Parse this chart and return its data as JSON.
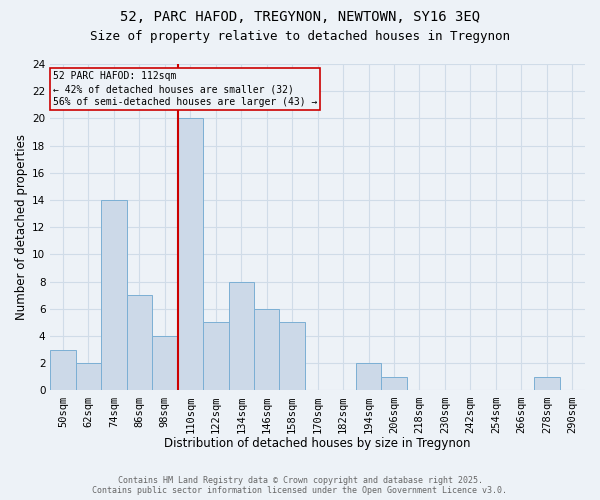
{
  "title_line1": "52, PARC HAFOD, TREGYNON, NEWTOWN, SY16 3EQ",
  "title_line2": "Size of property relative to detached houses in Tregynon",
  "xlabel": "Distribution of detached houses by size in Tregynon",
  "ylabel": "Number of detached properties",
  "bin_labels": [
    "50sqm",
    "62sqm",
    "74sqm",
    "86sqm",
    "98sqm",
    "110sqm",
    "122sqm",
    "134sqm",
    "146sqm",
    "158sqm",
    "170sqm",
    "182sqm",
    "194sqm",
    "206sqm",
    "218sqm",
    "230sqm",
    "242sqm",
    "254sqm",
    "266sqm",
    "278sqm",
    "290sqm"
  ],
  "bar_values": [
    3,
    2,
    14,
    7,
    4,
    20,
    5,
    8,
    6,
    5,
    0,
    0,
    2,
    1,
    0,
    0,
    0,
    0,
    0,
    1,
    0
  ],
  "bar_color": "#ccd9e8",
  "bar_edgecolor": "#7bafd4",
  "vline_x_index": 4.5,
  "vline_color": "#cc0000",
  "annotation_text": "52 PARC HAFOD: 112sqm\n← 42% of detached houses are smaller (32)\n56% of semi-detached houses are larger (43) →",
  "annotation_box_edgecolor": "#cc0000",
  "ylim": [
    0,
    24
  ],
  "yticks": [
    0,
    2,
    4,
    6,
    8,
    10,
    12,
    14,
    16,
    18,
    20,
    22,
    24
  ],
  "footer_text": "Contains HM Land Registry data © Crown copyright and database right 2025.\nContains public sector information licensed under the Open Government Licence v3.0.",
  "background_color": "#edf2f7",
  "grid_color": "#d0dce8",
  "title_fontsize": 10,
  "subtitle_fontsize": 9,
  "tick_fontsize": 7.5,
  "label_fontsize": 8.5
}
